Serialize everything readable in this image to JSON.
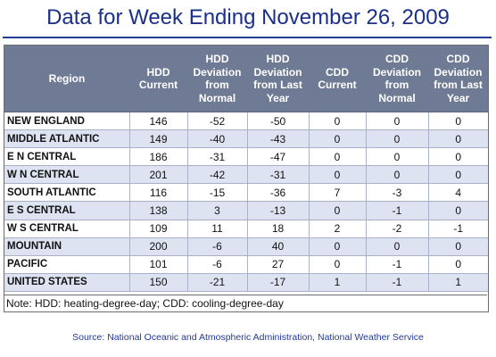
{
  "title": "Data for Week Ending November 26, 2009",
  "columns": [
    "Region",
    "HDD Current",
    "HDD Deviation from Normal",
    "HDD Deviation from Last Year",
    "CDD Current",
    "CDD Deviation from Normal",
    "CDD Deviation from Last Year"
  ],
  "rows": [
    [
      "NEW ENGLAND",
      "146",
      "-52",
      "-50",
      "0",
      "0",
      "0"
    ],
    [
      "MIDDLE ATLANTIC",
      "149",
      "-40",
      "-43",
      "0",
      "0",
      "0"
    ],
    [
      "E N CENTRAL",
      "186",
      "-31",
      "-47",
      "0",
      "0",
      "0"
    ],
    [
      "W N CENTRAL",
      "201",
      "-42",
      "-31",
      "0",
      "0",
      "0"
    ],
    [
      "SOUTH ATLANTIC",
      "116",
      "-15",
      "-36",
      "7",
      "-3",
      "4"
    ],
    [
      "E S CENTRAL",
      "138",
      "3",
      "-13",
      "0",
      "-1",
      "0"
    ],
    [
      "W S CENTRAL",
      "109",
      "11",
      "18",
      "2",
      "-2",
      "-1"
    ],
    [
      "MOUNTAIN",
      "200",
      "-6",
      "40",
      "0",
      "0",
      "0"
    ],
    [
      "PACIFIC",
      "101",
      "-6",
      "27",
      "0",
      "-1",
      "0"
    ],
    [
      "UNITED STATES",
      "150",
      "-21",
      "-17",
      "1",
      "-1",
      "1"
    ]
  ],
  "note": "Note: HDD: heating-degree-day; CDD: cooling-degree-day",
  "source": "Source:  National Oceanic and Atmospheric Administration, National Weather Service",
  "colors": {
    "title": "#1a2f8a",
    "header_bg": "#6f7a94",
    "stripe": "#dde3f1"
  }
}
